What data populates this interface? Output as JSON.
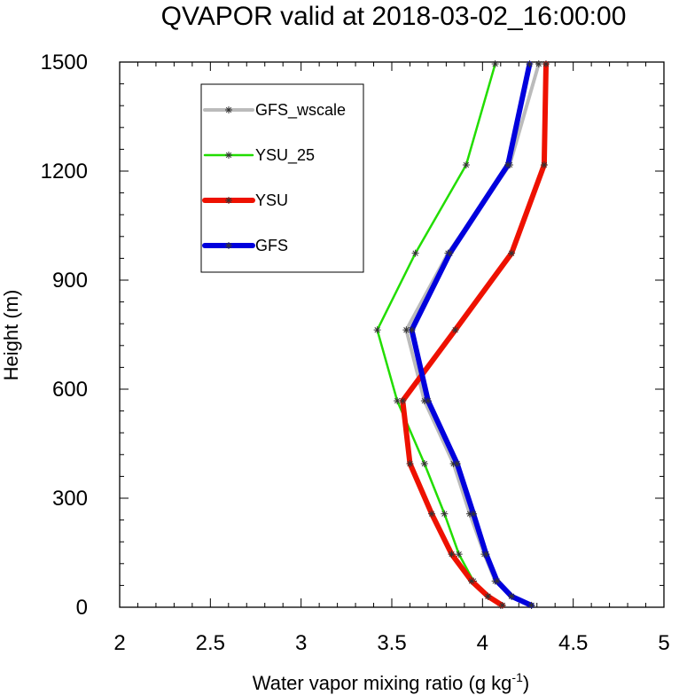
{
  "chart_data": {
    "type": "line",
    "title": "QVAPOR valid at 2018-03-02_16:00:00",
    "xlabel": "Water vapor mixing ratio (g kg",
    "xlabel_exp": "-1",
    "xlabel_end": ")",
    "ylabel": "Height (m)",
    "xlim": [
      2,
      5
    ],
    "ylim": [
      0,
      1500
    ],
    "xticks": [
      2,
      2.5,
      3,
      3.5,
      4,
      4.5,
      5
    ],
    "xtick_labels": [
      "2",
      "2.5",
      "3",
      "3.5",
      "4",
      "4.5",
      "5"
    ],
    "yticks": [
      0,
      300,
      600,
      900,
      1200,
      1500
    ],
    "ytick_labels": [
      "0",
      "300",
      "600",
      "900",
      "1200",
      "1500"
    ],
    "grid": false,
    "legend_position": "top-left",
    "series": [
      {
        "name": "GFS_wscale",
        "color": "#bbbbbb",
        "points": [
          [
            4.27,
            5
          ],
          [
            4.16,
            30
          ],
          [
            4.07,
            72
          ],
          [
            4.01,
            146
          ],
          [
            3.93,
            257
          ],
          [
            3.84,
            395
          ],
          [
            3.68,
            568
          ],
          [
            3.58,
            763
          ],
          [
            3.81,
            974
          ],
          [
            4.15,
            1217
          ],
          [
            4.31,
            1495
          ]
        ]
      },
      {
        "name": "YSU_25",
        "color": "#22dd00",
        "points": [
          [
            4.1,
            5
          ],
          [
            4.03,
            30
          ],
          [
            3.95,
            72
          ],
          [
            3.87,
            146
          ],
          [
            3.79,
            257
          ],
          [
            3.68,
            395
          ],
          [
            3.53,
            568
          ],
          [
            3.42,
            763
          ],
          [
            3.63,
            974
          ],
          [
            3.91,
            1217
          ],
          [
            4.07,
            1495
          ]
        ]
      },
      {
        "name": "YSU",
        "color": "#ee1100",
        "points": [
          [
            4.11,
            5
          ],
          [
            4.03,
            30
          ],
          [
            3.94,
            72
          ],
          [
            3.83,
            146
          ],
          [
            3.72,
            257
          ],
          [
            3.6,
            395
          ],
          [
            3.56,
            568
          ],
          [
            3.85,
            763
          ],
          [
            4.16,
            974
          ],
          [
            4.34,
            1217
          ],
          [
            4.35,
            1495
          ]
        ]
      },
      {
        "name": "GFS",
        "color": "#0000dd",
        "points": [
          [
            4.27,
            5
          ],
          [
            4.16,
            30
          ],
          [
            4.08,
            72
          ],
          [
            4.02,
            146
          ],
          [
            3.95,
            257
          ],
          [
            3.86,
            395
          ],
          [
            3.7,
            568
          ],
          [
            3.61,
            763
          ],
          [
            3.82,
            974
          ],
          [
            4.14,
            1217
          ],
          [
            4.26,
            1495
          ]
        ]
      }
    ]
  }
}
